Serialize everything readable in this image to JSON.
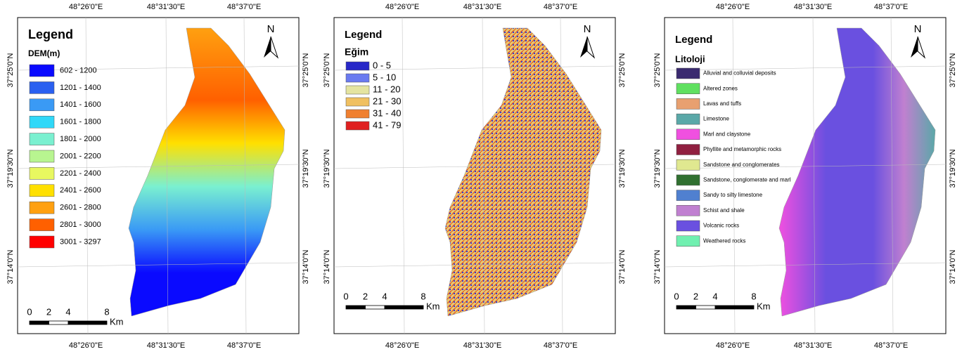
{
  "coordinates": {
    "longitudes": [
      "48°26'0\"E",
      "48°31'30\"E",
      "48°37'0\"E"
    ],
    "latitudes": [
      "37°25'0\"N",
      "37°19'30\"N",
      "37°14'0\"N"
    ]
  },
  "scale_bar": {
    "ticks": [
      "0",
      "2",
      "4",
      "8"
    ],
    "unit": "Km"
  },
  "north_arrow": "N",
  "panels": [
    {
      "legend_title": "Legend",
      "layer_title": "DEM(m)",
      "items": [
        {
          "label": "602 - 1200",
          "color": "#0a0aff"
        },
        {
          "label": "1201 - 1400",
          "color": "#2a60f0"
        },
        {
          "label": "1401 - 1600",
          "color": "#3a9af5"
        },
        {
          "label": "1601 - 1800",
          "color": "#30d8f8"
        },
        {
          "label": "1801 - 2000",
          "color": "#7af0d0"
        },
        {
          "label": "2001 - 2200",
          "color": "#b8f590"
        },
        {
          "label": "2201 - 2400",
          "color": "#e8f860"
        },
        {
          "label": "2401 - 2600",
          "color": "#ffe000"
        },
        {
          "label": "2601 - 2800",
          "color": "#ffa010"
        },
        {
          "label": "2801 - 3000",
          "color": "#ff6000"
        },
        {
          "label": "3001 - 3297",
          "color": "#ff0000"
        }
      ]
    },
    {
      "legend_title": "Legend",
      "layer_title": "Eğim",
      "items": [
        {
          "label": "0 - 5",
          "color": "#2828c8"
        },
        {
          "label": "5 - 10",
          "color": "#6a7af0"
        },
        {
          "label": "11 - 20",
          "color": "#e4e4a0"
        },
        {
          "label": "21 - 30",
          "color": "#f0c060"
        },
        {
          "label": "31 - 40",
          "color": "#f08030"
        },
        {
          "label": "41 - 79",
          "color": "#e02020"
        }
      ]
    },
    {
      "legend_title": "Legend",
      "layer_title": "Litoloji",
      "items": [
        {
          "label": "Alluvial and colluvial deposits",
          "color": "#3a2a70"
        },
        {
          "label": "Altered zones",
          "color": "#60e060"
        },
        {
          "label": "Lavas and tuffs",
          "color": "#e8a070"
        },
        {
          "label": "Limestone",
          "color": "#5aa8a8"
        },
        {
          "label": "Marl and claystone",
          "color": "#f050e0"
        },
        {
          "label": "Phyllite and metamorphic rocks",
          "color": "#902040"
        },
        {
          "label": "Sandstone and conglomerates",
          "color": "#e0e890"
        },
        {
          "label": "Sandstone, conglomerate and marl",
          "color": "#307030"
        },
        {
          "label": "Sandy to silty limestone",
          "color": "#5080d0"
        },
        {
          "label": "Schist and shale",
          "color": "#c080d0"
        },
        {
          "label": "Volcanic rocks",
          "color": "#6a50e0"
        },
        {
          "label": "Weathered  rocks",
          "color": "#70f0b0"
        }
      ]
    }
  ]
}
